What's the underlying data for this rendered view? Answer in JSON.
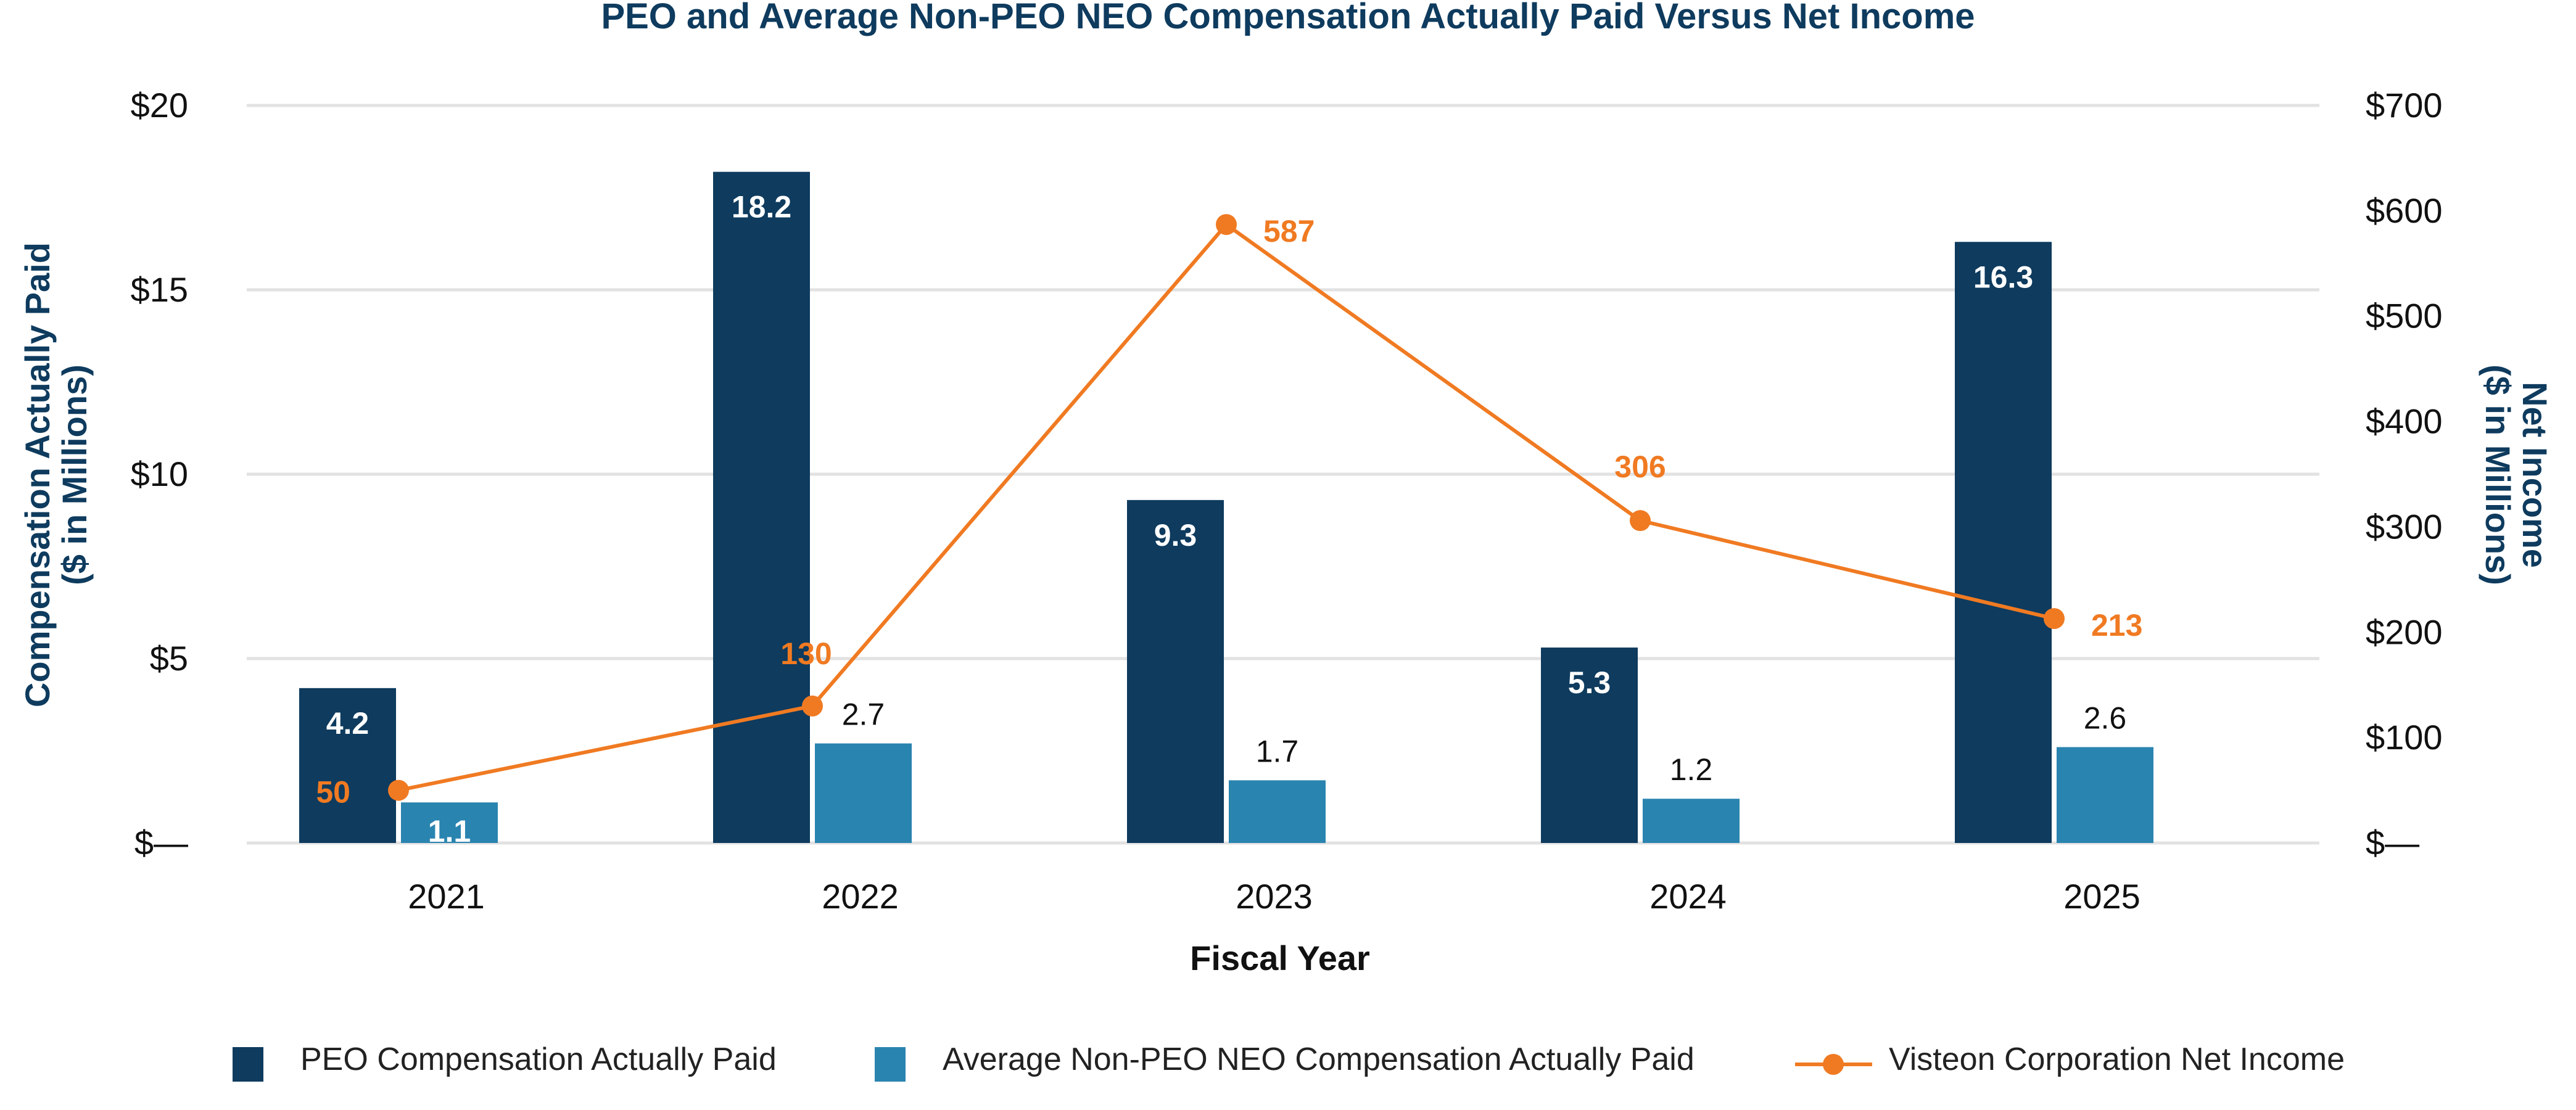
{
  "chart_data": {
    "type": "bar",
    "title": "PEO and Average Non-PEO NEO Compensation Actually Paid Versus Net Income",
    "xlabel": "Fiscal Year",
    "ylabel": "Compensation Actually Paid\n($ in Millions)",
    "ylabel_lines": [
      "Compensation Actually Paid",
      "($ in Millions)"
    ],
    "y2label": "Net Income\n($ in Millions)",
    "y2label_lines": [
      "Net Income",
      "($ in Millions)"
    ],
    "categories": [
      "2021",
      "2022",
      "2023",
      "2024",
      "2025"
    ],
    "ylim": [
      0,
      20
    ],
    "y2lim": [
      0,
      700
    ],
    "yticks": [
      {
        "value": 0,
        "label": "$—"
      },
      {
        "value": 5,
        "label": "$5"
      },
      {
        "value": 10,
        "label": "$10"
      },
      {
        "value": 15,
        "label": "$15"
      },
      {
        "value": 20,
        "label": "$20"
      }
    ],
    "y2ticks": [
      {
        "value": 0,
        "label": "$—"
      },
      {
        "value": 100,
        "label": "$100"
      },
      {
        "value": 200,
        "label": "$200"
      },
      {
        "value": 300,
        "label": "$300"
      },
      {
        "value": 400,
        "label": "$400"
      },
      {
        "value": 500,
        "label": "$500"
      },
      {
        "value": 600,
        "label": "$600"
      },
      {
        "value": 700,
        "label": "$700"
      }
    ],
    "grid": true,
    "legend_position": "bottom",
    "series": [
      {
        "name": "PEO Compensation Actually Paid",
        "type": "bar",
        "axis": "left",
        "color": "#0e3b5e",
        "values": [
          4.2,
          18.2,
          9.3,
          5.3,
          16.3
        ],
        "labels": [
          "4.2",
          "18.2",
          "9.3",
          "5.3",
          "16.3"
        ]
      },
      {
        "name": "Average Non-PEO NEO Compensation Actually Paid",
        "type": "bar",
        "axis": "left",
        "color": "#2a84b0",
        "values": [
          1.1,
          2.7,
          1.7,
          1.2,
          2.6
        ],
        "labels": [
          "1.1",
          "2.7",
          "1.7",
          "1.2",
          "2.6"
        ]
      },
      {
        "name": "Visteon Corporation Net Income",
        "type": "line",
        "axis": "right",
        "color": "#f07a22",
        "values": [
          50,
          130,
          587,
          306,
          213
        ],
        "labels": [
          "50",
          "130",
          "587",
          "306",
          "213"
        ]
      }
    ]
  }
}
